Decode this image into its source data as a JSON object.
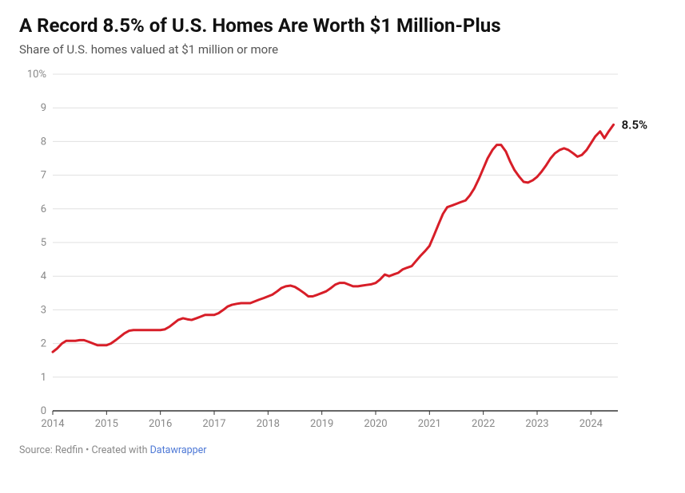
{
  "title": "A Record 8.5% of U.S. Homes Are Worth $1 Million-Plus",
  "subtitle": "Share of U.S. homes valued at $1 million or more",
  "source_prefix": "Source: Redfin • Created with ",
  "source_link_text": "Datawrapper",
  "chart": {
    "type": "line",
    "line_color": "#d71e28",
    "line_width": 3,
    "background_color": "#ffffff",
    "grid_color": "#e0e0e0",
    "axis_color": "#333333",
    "tick_label_color": "#888888",
    "end_label_color": "#111111",
    "xlim": [
      2014.0,
      2024.5
    ],
    "ylim": [
      0,
      10
    ],
    "y_ticks": [
      {
        "v": 0,
        "label": "0"
      },
      {
        "v": 1,
        "label": "1"
      },
      {
        "v": 2,
        "label": "2"
      },
      {
        "v": 3,
        "label": "3"
      },
      {
        "v": 4,
        "label": "4"
      },
      {
        "v": 5,
        "label": "5"
      },
      {
        "v": 6,
        "label": "6"
      },
      {
        "v": 7,
        "label": "7"
      },
      {
        "v": 8,
        "label": "8"
      },
      {
        "v": 9,
        "label": "9"
      },
      {
        "v": 10,
        "label": "10%"
      }
    ],
    "x_ticks": [
      {
        "v": 2014,
        "label": "2014"
      },
      {
        "v": 2015,
        "label": "2015"
      },
      {
        "v": 2016,
        "label": "2016"
      },
      {
        "v": 2017,
        "label": "2017"
      },
      {
        "v": 2018,
        "label": "2018"
      },
      {
        "v": 2019,
        "label": "2019"
      },
      {
        "v": 2020,
        "label": "2020"
      },
      {
        "v": 2021,
        "label": "2021"
      },
      {
        "v": 2022,
        "label": "2022"
      },
      {
        "v": 2023,
        "label": "2023"
      },
      {
        "v": 2024,
        "label": "2024"
      }
    ],
    "series": {
      "label": "8.5%",
      "points": [
        [
          2014.0,
          1.75
        ],
        [
          2014.08,
          1.85
        ],
        [
          2014.17,
          2.0
        ],
        [
          2014.25,
          2.08
        ],
        [
          2014.33,
          2.08
        ],
        [
          2014.42,
          2.08
        ],
        [
          2014.5,
          2.1
        ],
        [
          2014.58,
          2.1
        ],
        [
          2014.67,
          2.05
        ],
        [
          2014.75,
          2.0
        ],
        [
          2014.83,
          1.95
        ],
        [
          2014.92,
          1.95
        ],
        [
          2015.0,
          1.95
        ],
        [
          2015.08,
          2.0
        ],
        [
          2015.17,
          2.1
        ],
        [
          2015.25,
          2.2
        ],
        [
          2015.33,
          2.3
        ],
        [
          2015.42,
          2.38
        ],
        [
          2015.5,
          2.4
        ],
        [
          2015.58,
          2.4
        ],
        [
          2015.67,
          2.4
        ],
        [
          2015.75,
          2.4
        ],
        [
          2015.83,
          2.4
        ],
        [
          2015.92,
          2.4
        ],
        [
          2016.0,
          2.4
        ],
        [
          2016.08,
          2.42
        ],
        [
          2016.17,
          2.5
        ],
        [
          2016.25,
          2.6
        ],
        [
          2016.33,
          2.7
        ],
        [
          2016.42,
          2.75
        ],
        [
          2016.5,
          2.72
        ],
        [
          2016.58,
          2.7
        ],
        [
          2016.67,
          2.75
        ],
        [
          2016.75,
          2.8
        ],
        [
          2016.83,
          2.85
        ],
        [
          2016.92,
          2.85
        ],
        [
          2017.0,
          2.85
        ],
        [
          2017.08,
          2.9
        ],
        [
          2017.17,
          3.0
        ],
        [
          2017.25,
          3.1
        ],
        [
          2017.33,
          3.15
        ],
        [
          2017.42,
          3.18
        ],
        [
          2017.5,
          3.2
        ],
        [
          2017.58,
          3.2
        ],
        [
          2017.67,
          3.2
        ],
        [
          2017.75,
          3.25
        ],
        [
          2017.83,
          3.3
        ],
        [
          2017.92,
          3.35
        ],
        [
          2018.0,
          3.4
        ],
        [
          2018.08,
          3.45
        ],
        [
          2018.17,
          3.55
        ],
        [
          2018.25,
          3.65
        ],
        [
          2018.33,
          3.7
        ],
        [
          2018.42,
          3.72
        ],
        [
          2018.5,
          3.68
        ],
        [
          2018.58,
          3.6
        ],
        [
          2018.67,
          3.5
        ],
        [
          2018.75,
          3.4
        ],
        [
          2018.83,
          3.4
        ],
        [
          2018.92,
          3.45
        ],
        [
          2019.0,
          3.5
        ],
        [
          2019.08,
          3.55
        ],
        [
          2019.17,
          3.65
        ],
        [
          2019.25,
          3.75
        ],
        [
          2019.33,
          3.8
        ],
        [
          2019.42,
          3.8
        ],
        [
          2019.5,
          3.75
        ],
        [
          2019.58,
          3.7
        ],
        [
          2019.67,
          3.7
        ],
        [
          2019.75,
          3.72
        ],
        [
          2019.83,
          3.74
        ],
        [
          2019.92,
          3.76
        ],
        [
          2020.0,
          3.8
        ],
        [
          2020.08,
          3.9
        ],
        [
          2020.17,
          4.05
        ],
        [
          2020.25,
          4.0
        ],
        [
          2020.33,
          4.05
        ],
        [
          2020.42,
          4.1
        ],
        [
          2020.5,
          4.2
        ],
        [
          2020.58,
          4.25
        ],
        [
          2020.67,
          4.3
        ],
        [
          2020.75,
          4.45
        ],
        [
          2020.83,
          4.6
        ],
        [
          2020.92,
          4.75
        ],
        [
          2021.0,
          4.9
        ],
        [
          2021.08,
          5.2
        ],
        [
          2021.17,
          5.55
        ],
        [
          2021.25,
          5.85
        ],
        [
          2021.33,
          6.05
        ],
        [
          2021.42,
          6.1
        ],
        [
          2021.5,
          6.15
        ],
        [
          2021.58,
          6.2
        ],
        [
          2021.67,
          6.25
        ],
        [
          2021.75,
          6.4
        ],
        [
          2021.83,
          6.6
        ],
        [
          2021.92,
          6.9
        ],
        [
          2022.0,
          7.2
        ],
        [
          2022.08,
          7.5
        ],
        [
          2022.17,
          7.75
        ],
        [
          2022.25,
          7.9
        ],
        [
          2022.33,
          7.9
        ],
        [
          2022.42,
          7.7
        ],
        [
          2022.5,
          7.4
        ],
        [
          2022.58,
          7.15
        ],
        [
          2022.67,
          6.95
        ],
        [
          2022.75,
          6.8
        ],
        [
          2022.83,
          6.78
        ],
        [
          2022.92,
          6.85
        ],
        [
          2023.0,
          6.95
        ],
        [
          2023.08,
          7.1
        ],
        [
          2023.17,
          7.3
        ],
        [
          2023.25,
          7.5
        ],
        [
          2023.33,
          7.65
        ],
        [
          2023.42,
          7.75
        ],
        [
          2023.5,
          7.8
        ],
        [
          2023.58,
          7.75
        ],
        [
          2023.67,
          7.65
        ],
        [
          2023.75,
          7.55
        ],
        [
          2023.83,
          7.6
        ],
        [
          2023.92,
          7.75
        ],
        [
          2024.0,
          7.95
        ],
        [
          2024.08,
          8.15
        ],
        [
          2024.17,
          8.3
        ],
        [
          2024.25,
          8.1
        ],
        [
          2024.33,
          8.3
        ],
        [
          2024.42,
          8.5
        ]
      ]
    }
  }
}
